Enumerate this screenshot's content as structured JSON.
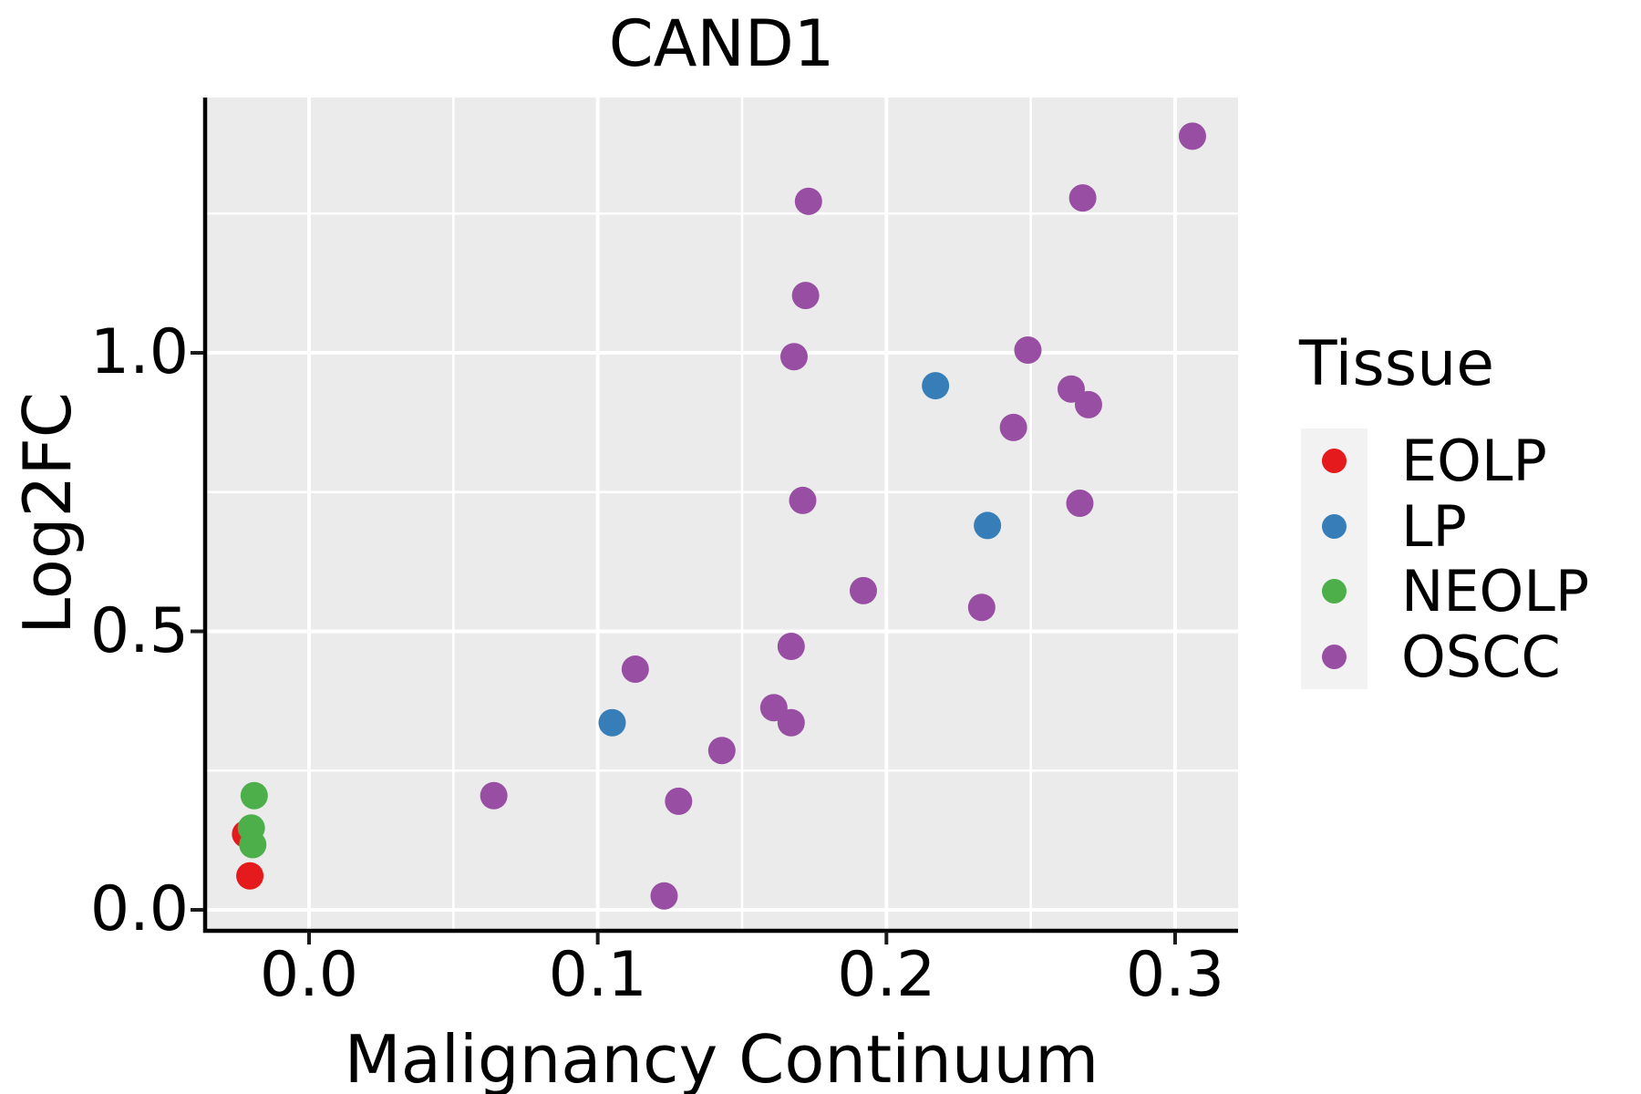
{
  "title": "CAND1",
  "axes": {
    "x": {
      "label": "Malignancy Continuum",
      "ticks": [
        0.0,
        0.1,
        0.2,
        0.3
      ],
      "tick_labels": [
        "0.0",
        "0.1",
        "0.2",
        "0.3"
      ],
      "minor_ticks": [
        0.05,
        0.15,
        0.25
      ]
    },
    "y": {
      "label": "Log2FC",
      "ticks": [
        0.0,
        0.5,
        1.0
      ],
      "tick_labels": [
        "0.0",
        "0.5",
        "1.0"
      ],
      "minor_ticks": [
        0.25,
        0.75,
        1.25
      ]
    }
  },
  "legend": {
    "title": "Tissue",
    "items": [
      {
        "label": "EOLP",
        "color": "#E41A1C"
      },
      {
        "label": "LP",
        "color": "#377EB8"
      },
      {
        "label": "NEOLP",
        "color": "#4DAF4A"
      },
      {
        "label": "OSCC",
        "color": "#984EA3"
      }
    ]
  },
  "colors": {
    "panel_background": "#EBEBEB",
    "grid_line": "#FFFFFF",
    "axis_line": "#000000",
    "tick_mark": "#1a1a1a",
    "legend_key_background": "#F2F2F2"
  },
  "chart_data": {
    "type": "scatter",
    "title": "CAND1",
    "xlabel": "Malignancy Continuum",
    "ylabel": "Log2FC",
    "xlim": [
      -0.036,
      0.3218
    ],
    "ylim": [
      -0.036,
      1.4583
    ],
    "grid": true,
    "legend_title": "Tissue",
    "legend_position": "right",
    "point_radius_px": 15,
    "series": [
      {
        "name": "EOLP",
        "color": "#E41A1C",
        "points": [
          [
            -0.022,
            0.136
          ],
          [
            -0.0205,
            0.061
          ]
        ]
      },
      {
        "name": "LP",
        "color": "#377EB8",
        "points": [
          [
            0.105,
            0.336
          ],
          [
            0.217,
            0.941
          ],
          [
            0.235,
            0.69
          ]
        ]
      },
      {
        "name": "NEOLP",
        "color": "#4DAF4A",
        "points": [
          [
            -0.019,
            0.205
          ],
          [
            -0.02,
            0.147
          ],
          [
            -0.0195,
            0.117
          ]
        ]
      },
      {
        "name": "OSCC",
        "color": "#984EA3",
        "points": [
          [
            0.306,
            1.389
          ],
          [
            0.268,
            1.278
          ],
          [
            0.173,
            1.272
          ],
          [
            0.172,
            1.103
          ],
          [
            0.249,
            1.005
          ],
          [
            0.168,
            0.993
          ],
          [
            0.264,
            0.935
          ],
          [
            0.27,
            0.907
          ],
          [
            0.244,
            0.866
          ],
          [
            0.267,
            0.73
          ],
          [
            0.171,
            0.735
          ],
          [
            0.192,
            0.573
          ],
          [
            0.233,
            0.543
          ],
          [
            0.167,
            0.473
          ],
          [
            0.113,
            0.432
          ],
          [
            0.161,
            0.363
          ],
          [
            0.167,
            0.336
          ],
          [
            0.143,
            0.286
          ],
          [
            0.128,
            0.195
          ],
          [
            0.064,
            0.205
          ],
          [
            0.123,
            0.025
          ]
        ]
      }
    ]
  }
}
